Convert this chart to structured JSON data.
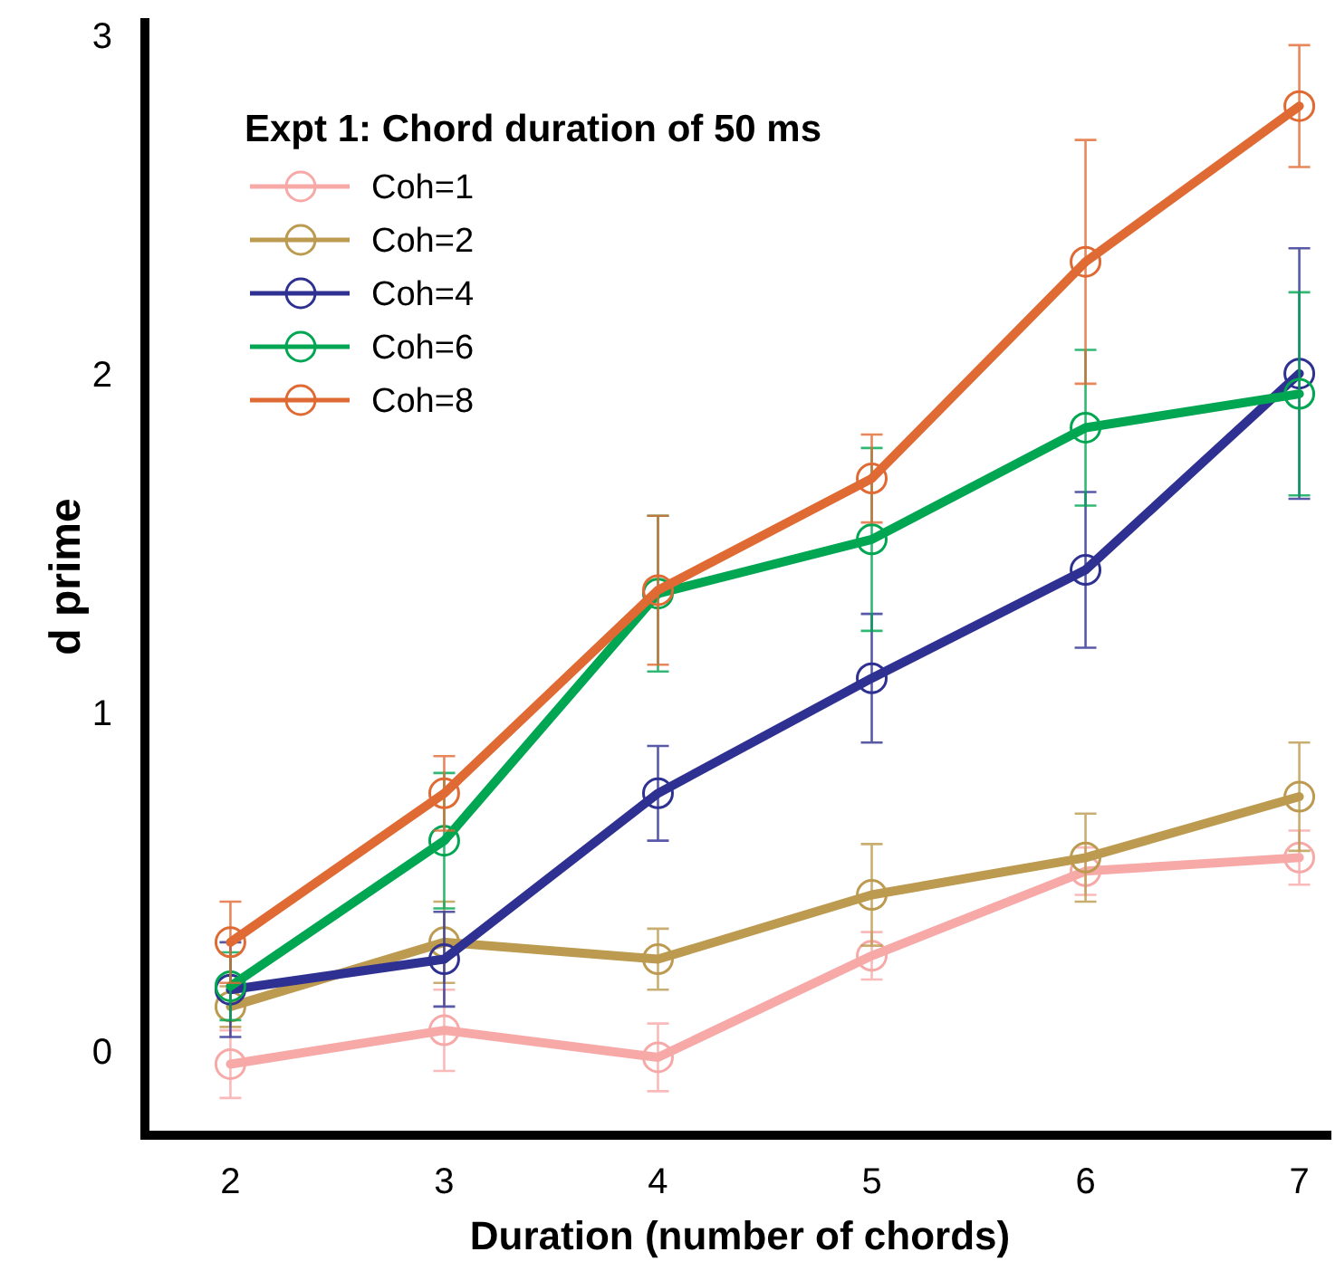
{
  "chart_data": {
    "type": "line",
    "xlabel": "Duration (number of chords)",
    "ylabel": "d prime",
    "legend_title": "Expt 1: Chord duration of 50 ms",
    "x": [
      2,
      3,
      4,
      5,
      6,
      7
    ],
    "xlim": [
      1.6,
      7.15
    ],
    "xticks": [
      2,
      3,
      4,
      5,
      6,
      7
    ],
    "ylim": [
      -0.25,
      3.05
    ],
    "yticks": [
      0,
      1,
      2,
      3
    ],
    "grid": false,
    "legend": "top left",
    "marker": "circle",
    "line_style": "solid",
    "series": [
      {
        "name": "Coh=1",
        "color": "#f7a9a8",
        "values": [
          -0.04,
          0.06,
          -0.02,
          0.28,
          0.53,
          0.57
        ],
        "errors": [
          0.1,
          0.12,
          0.1,
          0.07,
          0.07,
          0.08
        ]
      },
      {
        "name": "Coh=2",
        "color": "#bc9a4f",
        "values": [
          0.13,
          0.32,
          0.27,
          0.46,
          0.57,
          0.75
        ],
        "errors": [
          0.06,
          0.12,
          0.09,
          0.15,
          0.13,
          0.16
        ]
      },
      {
        "name": "Coh=4",
        "color": "#2e3192",
        "values": [
          0.18,
          0.27,
          0.76,
          1.1,
          1.42,
          2.0
        ],
        "errors": [
          0.14,
          0.14,
          0.14,
          0.19,
          0.23,
          0.37
        ]
      },
      {
        "name": "Coh=6",
        "color": "#00a651",
        "values": [
          0.19,
          0.62,
          1.35,
          1.51,
          1.84,
          1.94
        ],
        "errors": [
          0.1,
          0.2,
          0.23,
          0.27,
          0.23,
          0.3
        ]
      },
      {
        "name": "Coh=8",
        "color": "#e06a33",
        "values": [
          0.32,
          0.76,
          1.36,
          1.69,
          2.33,
          2.79
        ],
        "errors": [
          0.12,
          0.11,
          0.22,
          0.13,
          0.36,
          0.18
        ]
      }
    ]
  }
}
